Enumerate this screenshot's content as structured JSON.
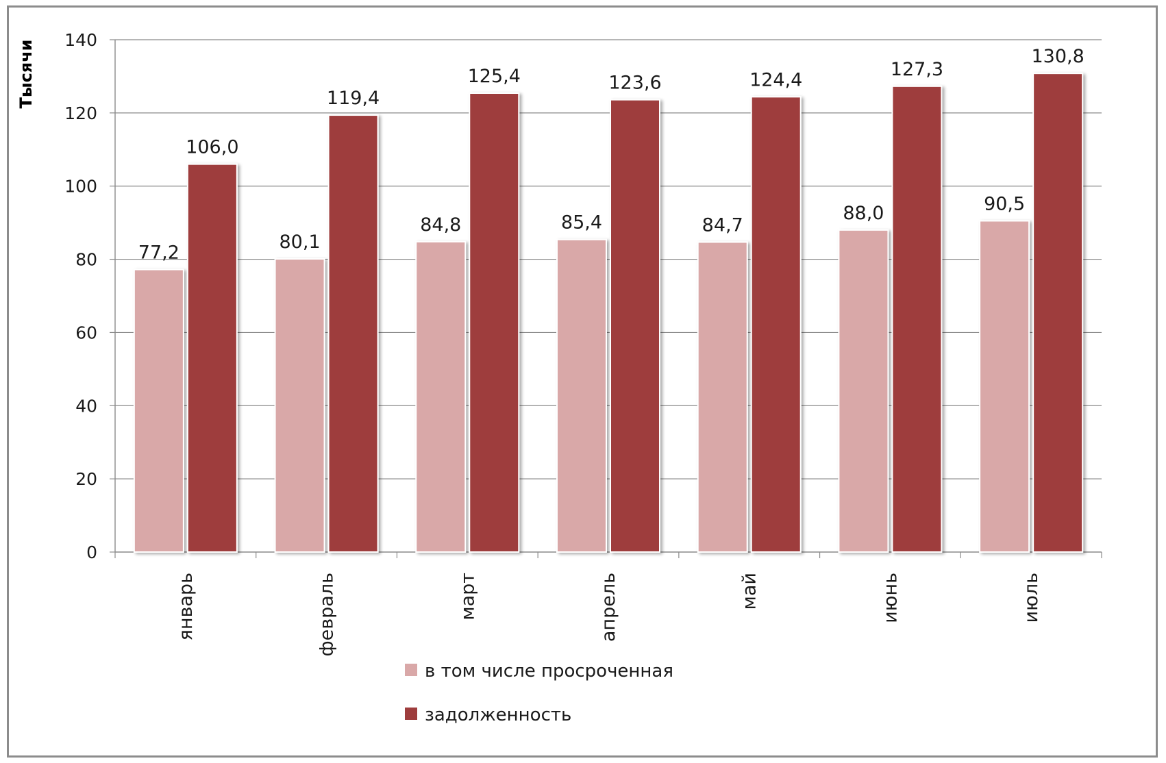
{
  "chart_data": {
    "type": "bar",
    "categories": [
      "январь",
      "февраль",
      "март",
      "апрель",
      "май",
      "июнь",
      "июль"
    ],
    "series": [
      {
        "name": "в том числе просроченная",
        "color": "#d9a8a8",
        "values": [
          77.2,
          80.1,
          84.8,
          85.4,
          84.7,
          88.0,
          90.5
        ],
        "labels": [
          "77,2",
          "80,1",
          "84,8",
          "85,4",
          "84,7",
          "88,0",
          "90,5"
        ]
      },
      {
        "name": "задолженность",
        "color": "#9e3d3d",
        "values": [
          106.0,
          119.4,
          125.4,
          123.6,
          124.4,
          127.3,
          130.8
        ],
        "labels": [
          "106,0",
          "119,4",
          "125,4",
          "123,6",
          "124,4",
          "127,3",
          "130,8"
        ]
      }
    ],
    "ylabel": "Тысячи",
    "xlabel": "",
    "ylim": [
      0,
      140
    ],
    "yticks": [
      0,
      20,
      40,
      60,
      80,
      100,
      120,
      140
    ],
    "grid": true,
    "legend_position": "bottom"
  }
}
